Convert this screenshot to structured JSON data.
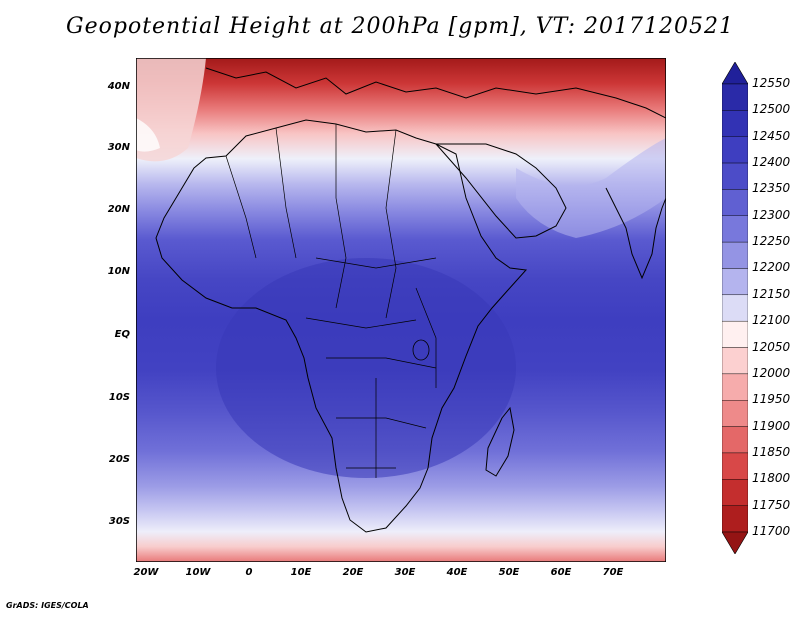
{
  "title": "Geopotential Height at 200hPa [gpm], VT: 2017120521",
  "credit": "GrADS: IGES/COLA",
  "map": {
    "variable": "Geopotential Height",
    "level": "200hPa",
    "units": "gpm",
    "valid_time": "2017120521",
    "lon_range": [
      -22,
      80
    ],
    "lat_range": [
      -37,
      44
    ],
    "lat_ticks": [
      "40N",
      "30N",
      "20N",
      "10N",
      "EQ",
      "10S",
      "20S",
      "30S"
    ],
    "lon_ticks": [
      "20W",
      "10W",
      "0",
      "10E",
      "20E",
      "30E",
      "40E",
      "50E",
      "60E",
      "70E"
    ]
  },
  "colorbar": {
    "levels": [
      "12550",
      "12500",
      "12450",
      "12400",
      "12350",
      "12300",
      "12250",
      "12200",
      "12150",
      "12100",
      "12050",
      "12000",
      "11950",
      "11900",
      "11850",
      "11800",
      "11750",
      "11700"
    ],
    "colors": [
      "#20209a",
      "#2a2aa8",
      "#3232b4",
      "#3e3ec0",
      "#4c4cc8",
      "#6060d2",
      "#7878dc",
      "#9494e4",
      "#b4b4ee",
      "#dcdcf6",
      "#fff0f0",
      "#fcd0d0",
      "#f6acac",
      "#ee8a8a",
      "#e46868",
      "#d84848",
      "#c42e2e",
      "#ae1e1e",
      "#941414"
    ]
  }
}
